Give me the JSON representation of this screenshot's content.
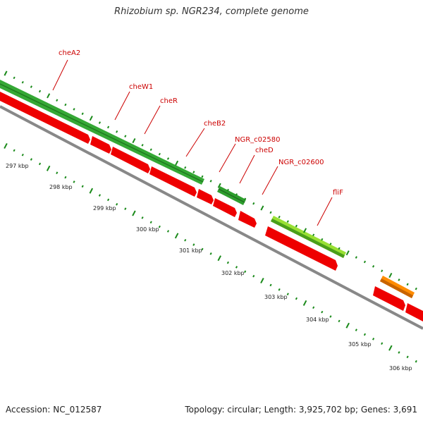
{
  "title": "Rhizobium sp. NGR234, complete genome",
  "footer": {
    "accession": "Accession: NC_012587",
    "summary": "Topology: circular; Length: 3,925,702 bp; Genes: 3,691"
  },
  "colors": {
    "cds": "#ee0000",
    "gene_green": "#2e9e2e",
    "gene_light": "#88dd22",
    "gene_orange": "#ff8800",
    "backbone": "#888888",
    "tick": "#1a8a1a",
    "label": "#cc0000"
  },
  "tick_labels": [
    "297 kbp",
    "298 kbp",
    "299 kbp",
    "300 kbp",
    "301 kbp",
    "302 kbp",
    "303 kbp",
    "304 kbp",
    "305 kbp",
    "306 kbp"
  ],
  "gene_labels": [
    "cheA2",
    "cheW1",
    "cheR",
    "cheB2",
    "NGR_c02580",
    "cheD",
    "NGR_c02600",
    "fliF"
  ]
}
